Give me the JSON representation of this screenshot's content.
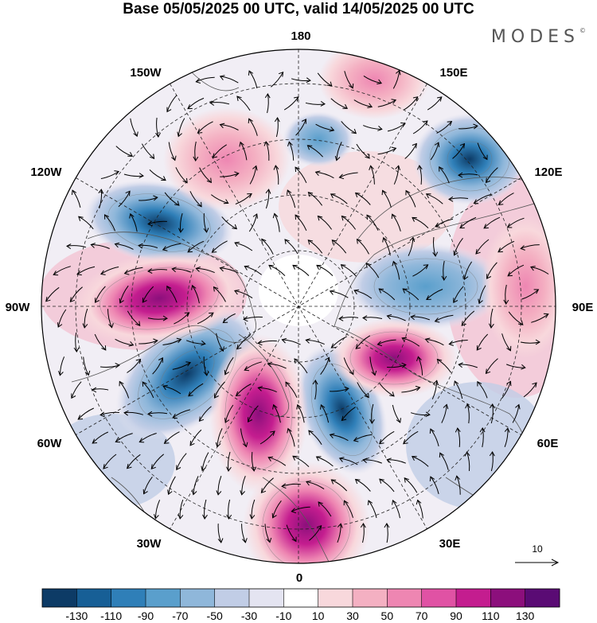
{
  "title": "Base 05/05/2025 00 UTC, valid 14/05/2025 00 UTC",
  "brand": "MODES",
  "brand_mark": "©",
  "longitude_labels": {
    "top": "180",
    "top_left": "150W",
    "top_right": "150E",
    "upper_left": "120W",
    "upper_right": "120E",
    "left": "90W",
    "right": "90E",
    "lower_left": "60W",
    "lower_right": "60E",
    "bottom_left": "30W",
    "bottom_right": "30E",
    "bottom": "0"
  },
  "reference_vector": {
    "label": "10"
  },
  "colorbar": {
    "colors": [
      "#0d3b66",
      "#175f96",
      "#2f7fb8",
      "#5a9fcc",
      "#8fb7da",
      "#c1cde6",
      "#e4e4f1",
      "#ffffff",
      "#f8d8dc",
      "#f4b0c2",
      "#ee86b2",
      "#e052a4",
      "#c41d8f",
      "#8c0f7c",
      "#5a0b74"
    ],
    "ticks": [
      "-130",
      "-110",
      "-90",
      "-70",
      "-50",
      "-30",
      "-10",
      "10",
      "30",
      "50",
      "70",
      "90",
      "110",
      "130"
    ]
  }
}
